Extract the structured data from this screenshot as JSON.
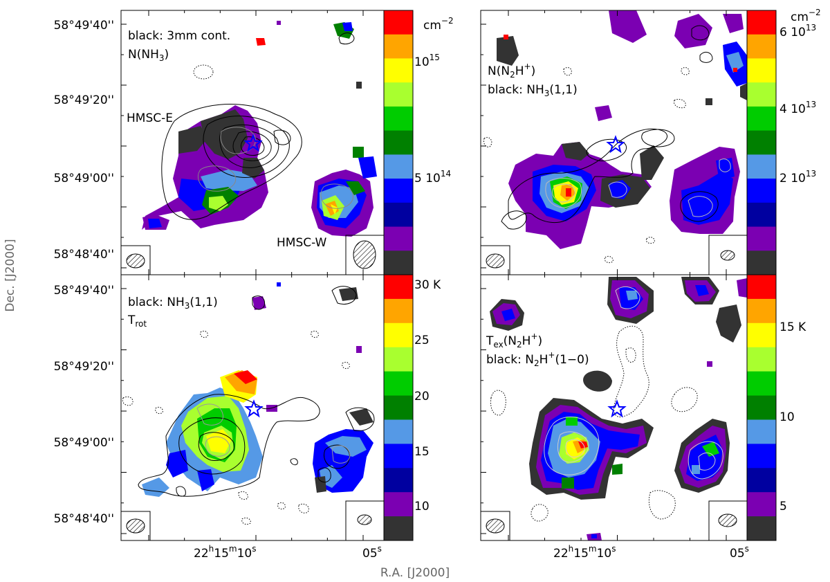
{
  "figure": {
    "y_axis_label": "Dec. [J2000]",
    "x_axis_label": "R.A. [J2000]",
    "ra_ticks": [
      {
        "value": "22h15m10s",
        "h": "22",
        "m": "15",
        "s": "10"
      },
      {
        "value": "05s",
        "s": "05"
      }
    ],
    "dec_ticks": [
      "58°49'40''",
      "58°49'20''",
      "58°49'00''",
      "58°48'40''"
    ]
  },
  "chart_data": [
    {
      "type": "heatmap",
      "panel": "top-left",
      "quantity": "N(NH3)",
      "annotations": [
        "black: 3mm cont.",
        "N(NH3)",
        "HMSC-E",
        "HMSC-W"
      ],
      "contours": "3mm continuum (black); grey contours overlaid",
      "colorbar": {
        "unit": "cm",
        "unit_exponent": "−2",
        "ticks": [
          {
            "label": "10",
            "exp": "15",
            "value": 1000000000000000.0
          },
          {
            "label": "5 10",
            "exp": "14",
            "value": 500000000000000.0
          }
        ],
        "colors": [
          "#ff0000",
          "#ffa500",
          "#ffff00",
          "#a9ff2f",
          "#00cc00",
          "#008000",
          "#5599e6",
          "#0000ff",
          "#0000a0",
          "#7b00b2",
          "#333333"
        ]
      },
      "markers": [
        {
          "symbol": "star",
          "color": "#0000ff"
        }
      ]
    },
    {
      "type": "heatmap",
      "panel": "top-right",
      "quantity": "N(N2H+)",
      "annotations": [
        "N(N2H+)",
        "black: NH3(1,1)"
      ],
      "colorbar": {
        "unit": "cm",
        "unit_exponent": "−2",
        "ticks": [
          {
            "label": "6 10",
            "exp": "13",
            "value": 60000000000000.0
          },
          {
            "label": "4 10",
            "exp": "13",
            "value": 40000000000000.0
          },
          {
            "label": "2 10",
            "exp": "13",
            "value": 20000000000000.0
          }
        ],
        "colors": [
          "#ff0000",
          "#ffa500",
          "#ffff00",
          "#a9ff2f",
          "#00cc00",
          "#008000",
          "#5599e6",
          "#0000ff",
          "#0000a0",
          "#7b00b2",
          "#333333"
        ]
      },
      "markers": [
        {
          "symbol": "star",
          "color": "#0000ff"
        }
      ]
    },
    {
      "type": "heatmap",
      "panel": "bottom-left",
      "quantity": "Trot",
      "annotations": [
        "black: NH3(1,1)",
        "Trot"
      ],
      "colorbar": {
        "unit": "K",
        "ticks": [
          {
            "label": "30",
            "value": 30
          },
          {
            "label": "25",
            "value": 25
          },
          {
            "label": "20",
            "value": 20
          },
          {
            "label": "15",
            "value": 15
          },
          {
            "label": "10",
            "value": 10
          }
        ],
        "colors": [
          "#ff0000",
          "#ffa500",
          "#ffff00",
          "#a9ff2f",
          "#00cc00",
          "#008000",
          "#5599e6",
          "#0000ff",
          "#0000a0",
          "#7b00b2",
          "#333333"
        ]
      },
      "markers": [
        {
          "symbol": "star",
          "color": "#0000ff"
        }
      ]
    },
    {
      "type": "heatmap",
      "panel": "bottom-right",
      "quantity": "Tex(N2H+)",
      "annotations": [
        "Tex(N2H+)",
        "black: N2H+(1−0)"
      ],
      "colorbar": {
        "unit": "K",
        "ticks": [
          {
            "label": "15",
            "value": 15
          },
          {
            "label": "10",
            "value": 10
          },
          {
            "label": "5",
            "value": 5
          }
        ],
        "colors": [
          "#ff0000",
          "#ffa500",
          "#ffff00",
          "#a9ff2f",
          "#00cc00",
          "#008000",
          "#5599e6",
          "#0000ff",
          "#0000a0",
          "#7b00b2",
          "#333333"
        ]
      },
      "markers": [
        {
          "symbol": "star",
          "color": "#0000ff"
        }
      ]
    }
  ]
}
